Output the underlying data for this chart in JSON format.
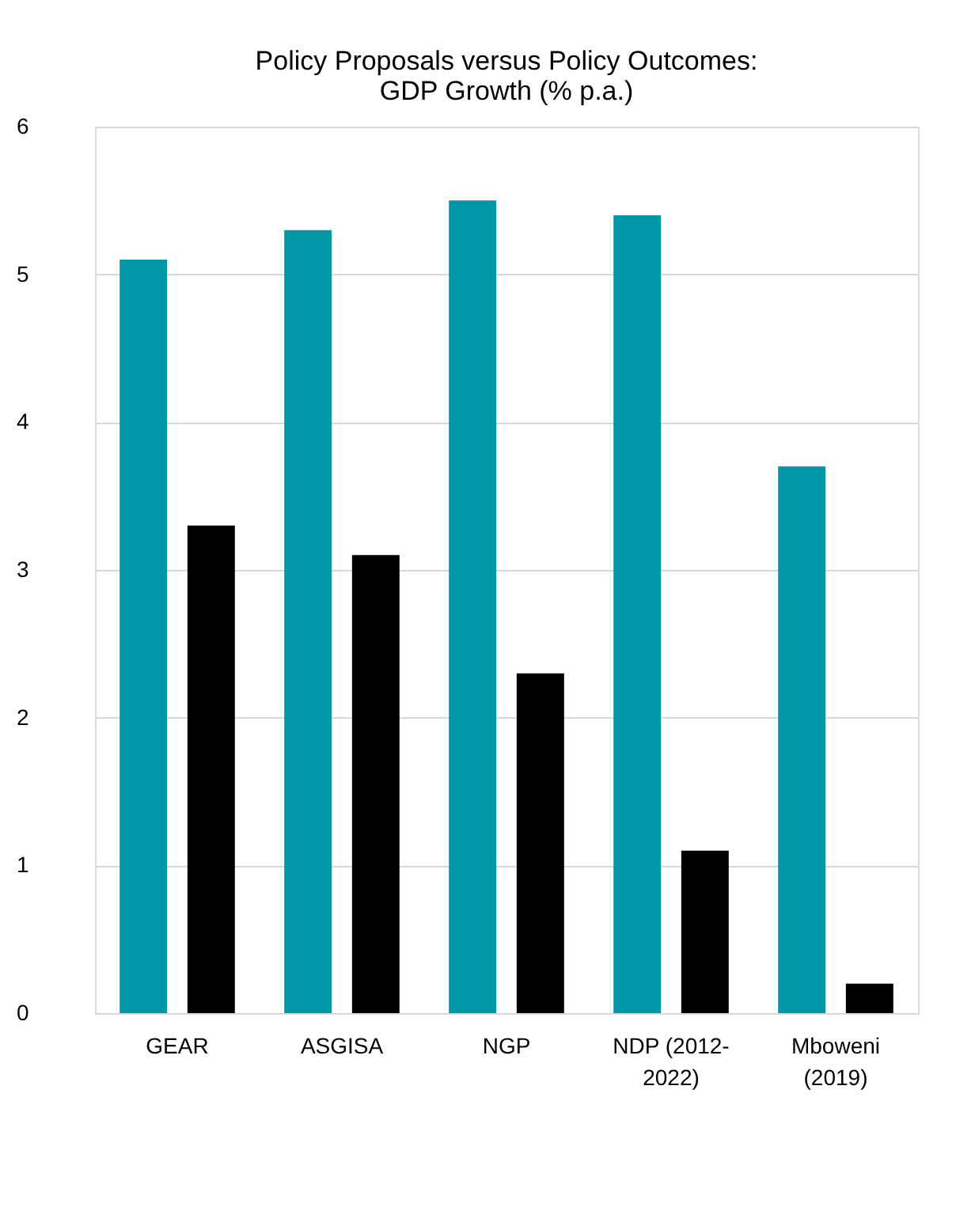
{
  "chart_data": {
    "type": "bar",
    "title": "Policy Proposals versus Policy Outcomes: GDP Growth (% p.a.)",
    "categories": [
      "GEAR",
      "ASGISA",
      "NGP",
      "NDP (2012-2022)",
      "Mboweni (2019)"
    ],
    "series": [
      {
        "color": "#0097a7",
        "values": [
          5.1,
          5.3,
          5.5,
          5.4,
          3.7
        ]
      },
      {
        "color": "#000000",
        "values": [
          3.3,
          3.1,
          2.3,
          1.1,
          0.2
        ]
      }
    ],
    "ylim": [
      0,
      6
    ],
    "yticks": [
      0,
      1,
      2,
      3,
      4,
      5,
      6
    ],
    "grid": "y",
    "legend": false
  }
}
